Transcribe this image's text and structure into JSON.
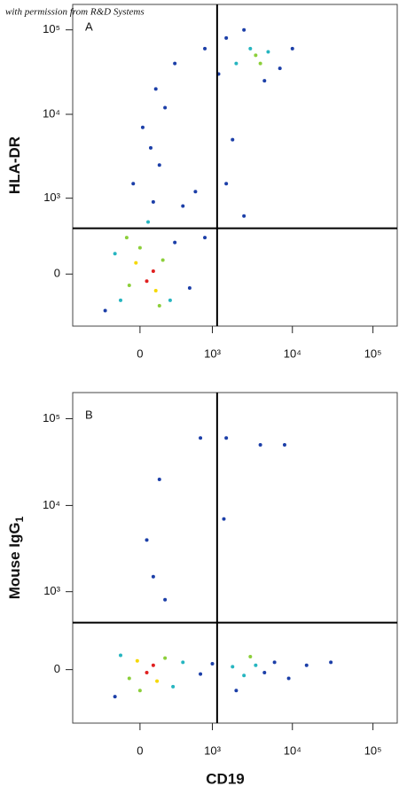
{
  "watermark": "with permission from R&D Systems",
  "chart_data": [
    {
      "type": "scatter",
      "panel_label": "A",
      "y_label": "HLA-DR",
      "scale": "biexponential",
      "xlim": [
        -860,
        200000
      ],
      "ylim": [
        -500,
        200000
      ],
      "xticks": [
        0,
        {
          "value": 1000,
          "label": "10³"
        },
        {
          "value": 10000,
          "label": "10⁴"
        },
        {
          "value": 100000,
          "label": "10⁵"
        }
      ],
      "yticks": [
        0,
        {
          "value": 1000,
          "label": "10³"
        },
        {
          "value": 10000,
          "label": "10⁴"
        },
        {
          "value": 100000,
          "label": "10⁵"
        }
      ],
      "gates": {
        "x": 1150,
        "y": 410
      },
      "x": [
        50,
        100,
        -30,
        120,
        -80,
        180,
        0,
        -150,
        250,
        -200,
        300,
        60,
        100,
        -50,
        150,
        80,
        20,
        200,
        120,
        400,
        600,
        800,
        -300,
        500,
        2000,
        3500,
        4000,
        3000,
        5000,
        1500,
        7000,
        2500,
        10000,
        1200,
        4500,
        800,
        1500,
        2500,
        1800,
        300,
        -100,
        150
      ],
      "values": [
        -50,
        20,
        80,
        -120,
        -80,
        100,
        200,
        -200,
        -200,
        150,
        250,
        500,
        900,
        1500,
        2500,
        4000,
        7000,
        12000,
        20000,
        800,
        1200,
        300,
        -300,
        -100,
        40000,
        50000,
        40000,
        60000,
        55000,
        80000,
        35000,
        100000,
        60000,
        30000,
        25000,
        60000,
        1500,
        600,
        5000,
        40000,
        300,
        -250
      ],
      "colors": [
        "#e02020",
        "#e02020",
        "#f5d800",
        "#f5d800",
        "#8ccf3a",
        "#8ccf3a",
        "#8ccf3a",
        "#26b5c0",
        "#26b5c0",
        "#26b5c0",
        "#1c3fa8",
        "#26b5c0",
        "#1c3fa8",
        "#1c3fa8",
        "#1c3fa8",
        "#1c3fa8",
        "#1c3fa8",
        "#1c3fa8",
        "#1c3fa8",
        "#1c3fa8",
        "#1c3fa8",
        "#1c3fa8",
        "#1c3fa8",
        "#1c3fa8",
        "#26b5c0",
        "#8ccf3a",
        "#8ccf3a",
        "#26b5c0",
        "#26b5c0",
        "#1c3fa8",
        "#1c3fa8",
        "#1c3fa8",
        "#1c3fa8",
        "#1c3fa8",
        "#1c3fa8",
        "#1c3fa8",
        "#1c3fa8",
        "#1c3fa8",
        "#1c3fa8",
        "#1c3fa8",
        "#8ccf3a",
        "#8ccf3a"
      ]
    },
    {
      "type": "scatter",
      "panel_label": "B",
      "y_label": "Mouse IgG",
      "y_label_subscript": "1",
      "x_label": "CD19",
      "scale": "biexponential",
      "xlim": [
        -860,
        200000
      ],
      "ylim": [
        -500,
        200000
      ],
      "xticks": [
        0,
        {
          "value": 1000,
          "label": "10³"
        },
        {
          "value": 10000,
          "label": "10⁴"
        },
        {
          "value": 100000,
          "label": "10⁵"
        }
      ],
      "yticks": [
        0,
        {
          "value": 1000,
          "label": "10³"
        },
        {
          "value": 10000,
          "label": "10⁴"
        },
        {
          "value": 100000,
          "label": "10⁵"
        }
      ],
      "gates": {
        "x": 1150,
        "y": 410
      },
      "x": [
        50,
        100,
        -20,
        130,
        -80,
        200,
        0,
        -150,
        280,
        400,
        -200,
        700,
        1000,
        1800,
        2500,
        3500,
        4500,
        3000,
        6000,
        9000,
        15000,
        2000,
        100,
        50,
        150,
        200,
        1500,
        4000,
        8000,
        700,
        1400,
        30000
      ],
      "values": [
        -20,
        30,
        60,
        -80,
        -60,
        80,
        -150,
        100,
        -120,
        50,
        -200,
        -30,
        40,
        20,
        -40,
        30,
        -20,
        90,
        50,
        -60,
        30,
        -150,
        1500,
        4000,
        20000,
        800,
        60000,
        50000,
        50000,
        60000,
        7000,
        50
      ],
      "colors": [
        "#e02020",
        "#e02020",
        "#f5d800",
        "#f5d800",
        "#8ccf3a",
        "#8ccf3a",
        "#8ccf3a",
        "#26b5c0",
        "#26b5c0",
        "#26b5c0",
        "#1c3fa8",
        "#1c3fa8",
        "#1c3fa8",
        "#26b5c0",
        "#26b5c0",
        "#26b5c0",
        "#1c3fa8",
        "#8ccf3a",
        "#1c3fa8",
        "#1c3fa8",
        "#1c3fa8",
        "#1c3fa8",
        "#1c3fa8",
        "#1c3fa8",
        "#1c3fa8",
        "#1c3fa8",
        "#1c3fa8",
        "#1c3fa8",
        "#1c3fa8",
        "#1c3fa8",
        "#1c3fa8",
        "#1c3fa8"
      ]
    }
  ]
}
